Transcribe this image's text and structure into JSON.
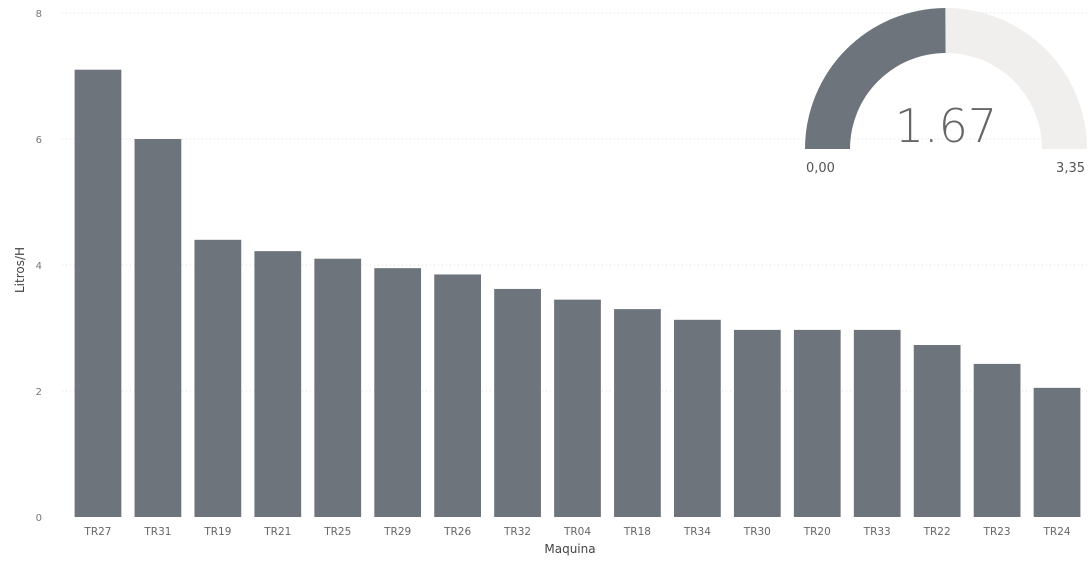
{
  "chart_data": [
    {
      "type": "bar",
      "categories": [
        "TR27",
        "TR31",
        "TR19",
        "TR21",
        "TR25",
        "TR29",
        "TR26",
        "TR32",
        "TR04",
        "TR18",
        "TR34",
        "TR30",
        "TR20",
        "TR33",
        "TR22",
        "TR23",
        "TR24"
      ],
      "values": [
        7.1,
        6.0,
        4.4,
        4.22,
        4.1,
        3.95,
        3.85,
        3.62,
        3.45,
        3.3,
        3.13,
        2.97,
        2.97,
        2.97,
        2.73,
        2.43,
        2.05
      ],
      "xlabel": "Maquina",
      "ylabel": "Litros/H",
      "ylim": [
        0,
        8
      ],
      "yticks": [
        "0",
        "2",
        "4",
        "6",
        "8"
      ],
      "grid": true,
      "bar_color": "#6e747b"
    },
    {
      "type": "gauge",
      "value": 1.67,
      "value_label": "1.67",
      "min": 0,
      "max": 3.35,
      "min_label": "0,00",
      "max_label": "3,35",
      "fill_color": "#6e747b",
      "track_color": "#f0efee"
    }
  ]
}
